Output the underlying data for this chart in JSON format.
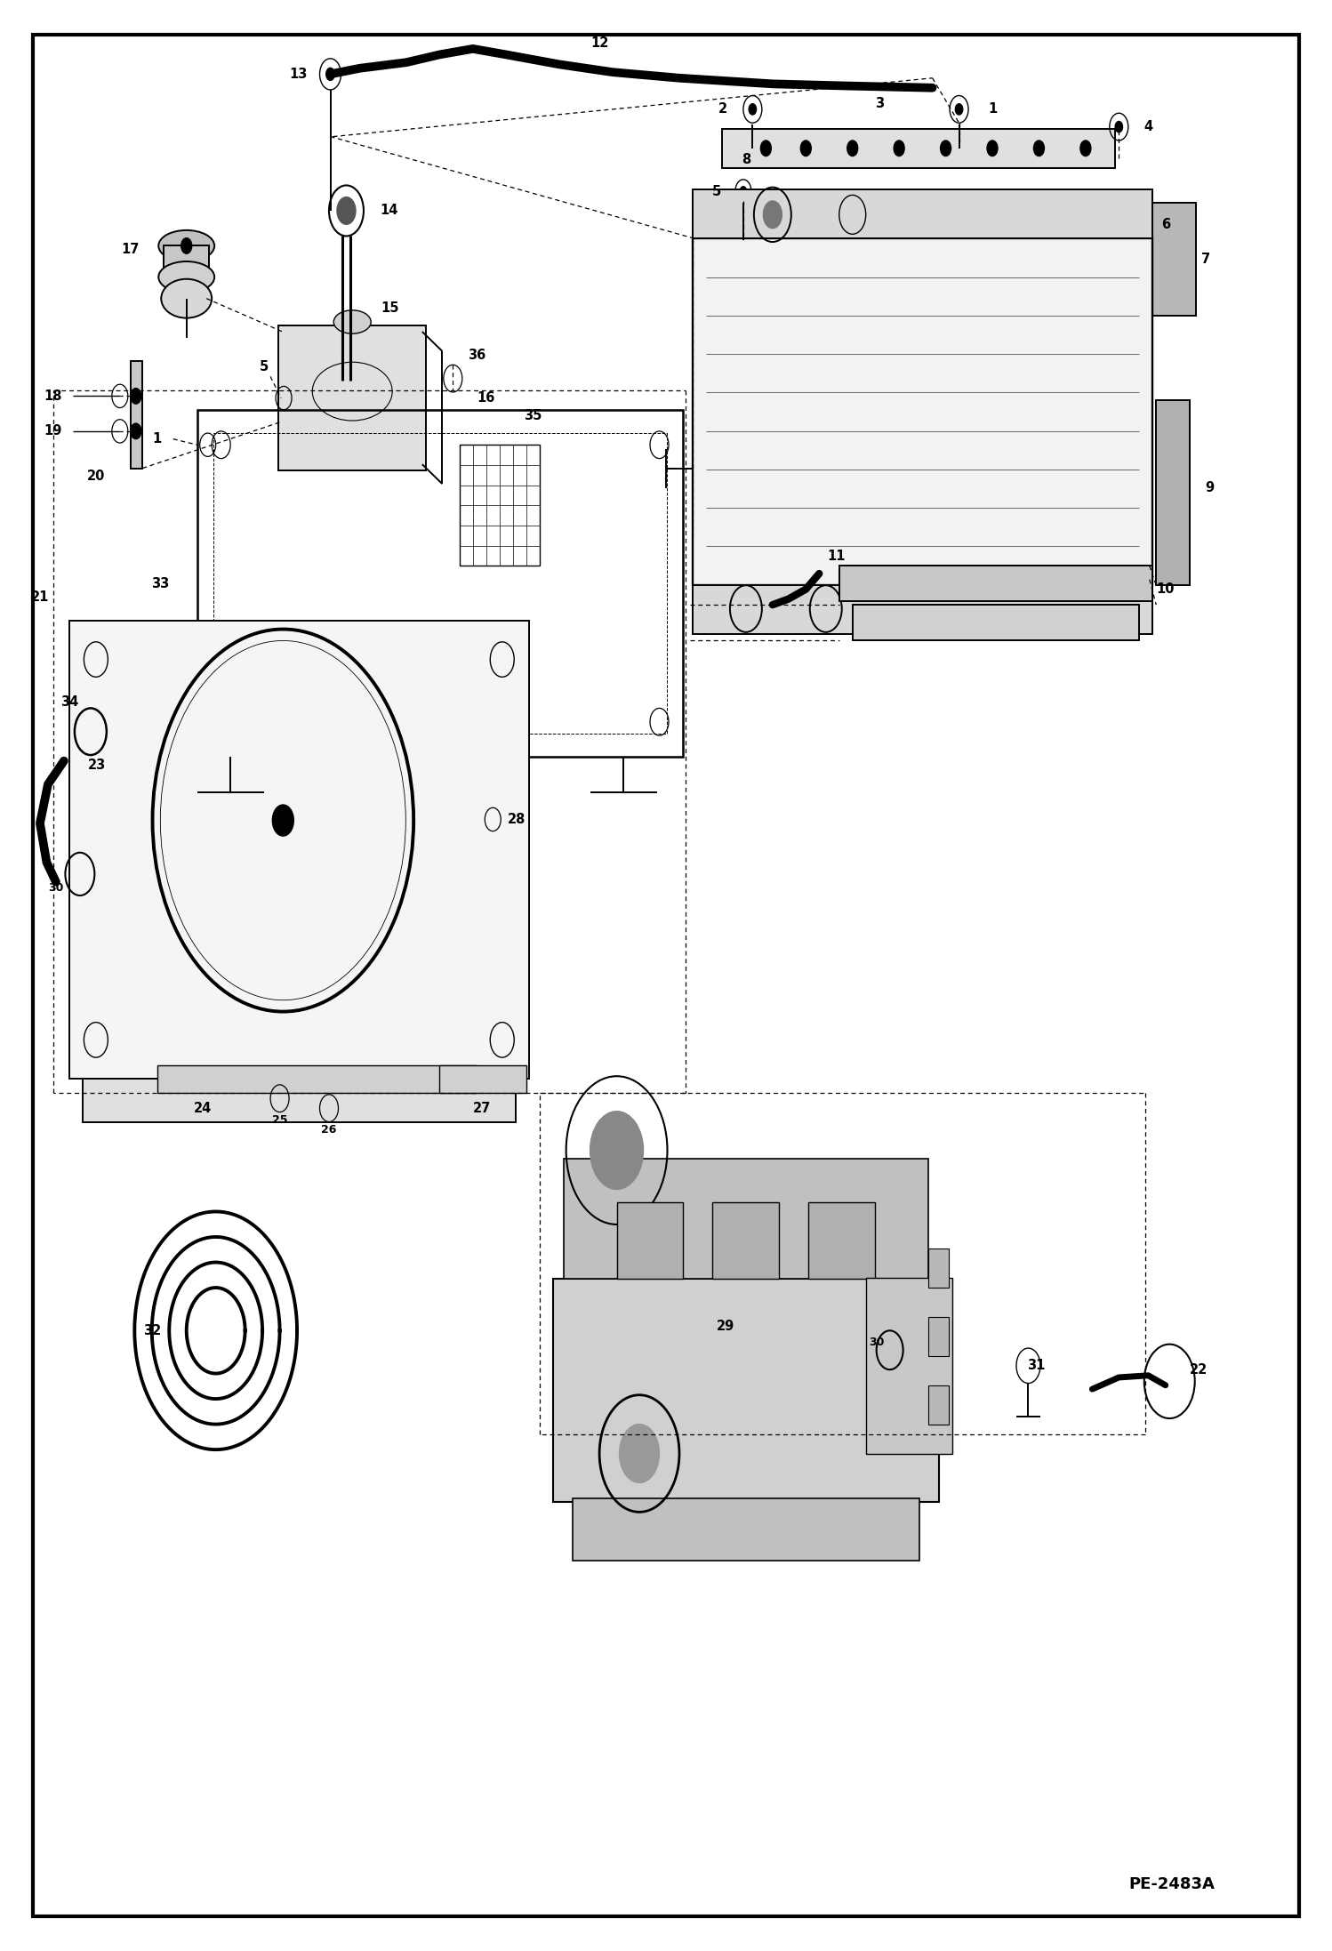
{
  "figure_width": 14.98,
  "figure_height": 21.94,
  "dpi": 100,
  "bg": "#ffffff",
  "lc": "#000000",
  "watermark": "PE-2483A",
  "border_lw": 3.0,
  "main_lw": 1.4,
  "dash_lw": 0.9,
  "label_fs": 10.5,
  "small_fs": 9.0
}
